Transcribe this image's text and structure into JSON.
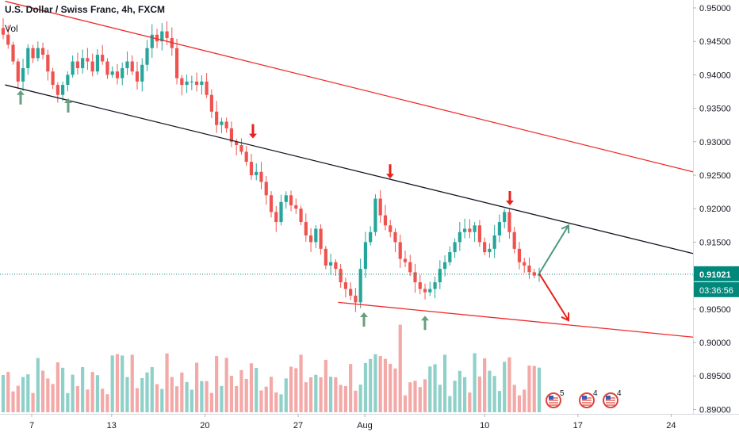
{
  "title": "U.S. Dollar / Swiss Franc, 4h, FXCM",
  "volume_label": "Vol",
  "price_label": "0.91021",
  "countdown_label": "03:36:56",
  "colors": {
    "up": "#26a69a",
    "down": "#ef5350",
    "up_volume": "#8fd0c9",
    "down_volume": "#f3a9a7",
    "price_line": "#00897b",
    "resistance_line": "#ef2b2b",
    "trend_line": "#131722",
    "up_arrow": "#6a9e80",
    "down_arrow": "#e8211d",
    "scenario_up": "#4f9a80",
    "scenario_down": "#e8211d"
  },
  "events": [
    {
      "icon": "us-flag-event-icon",
      "count": "5"
    },
    {
      "icon": "us-flag-event-icon",
      "count": "4"
    },
    {
      "icon": "us-flag-event-icon",
      "count": "4"
    }
  ],
  "chart_data": {
    "type": "candlestick",
    "symbol": "USDCHF",
    "interval": "4h",
    "y_axis": {
      "range": [
        0.8895,
        0.95
      ],
      "ticks": [
        "0.95000",
        "0.94500",
        "0.94000",
        "0.93500",
        "0.93000",
        "0.92500",
        "0.92000",
        "0.91500",
        "0.91000",
        "0.90500",
        "0.90000",
        "0.89500",
        "0.89000"
      ]
    },
    "x_axis": {
      "ticks": [
        "7",
        "13",
        "20",
        "27",
        "Aug",
        "10",
        "17",
        "24"
      ]
    },
    "last_price": 0.91021,
    "trend_lines": [
      {
        "name": "upper-channel",
        "from": [
          "Jul 5",
          0.951
        ],
        "to": [
          "Aug 28",
          0.9255
        ]
      },
      {
        "name": "middle-trend",
        "from": [
          "Jul 5",
          0.9385
        ],
        "to": [
          "Aug 28",
          0.9133
        ]
      },
      {
        "name": "lower-channel",
        "from": [
          "Jul 30",
          0.906
        ],
        "to": [
          "Aug 28",
          0.9008
        ]
      }
    ],
    "markers": [
      {
        "type": "up-arrow",
        "date": "Jul 6",
        "price": 0.9377
      },
      {
        "type": "up-arrow",
        "date": "Jul 9",
        "price": 0.9365
      },
      {
        "type": "down-arrow",
        "date": "Jul 24",
        "price": 0.9305
      },
      {
        "type": "down-arrow",
        "date": "Aug 1",
        "price": 0.9245
      },
      {
        "type": "down-arrow",
        "date": "Aug 13",
        "price": 0.9205
      },
      {
        "type": "up-arrow",
        "date": "Jul 31",
        "price": 0.9045
      },
      {
        "type": "up-arrow",
        "date": "Aug 5",
        "price": 0.904
      }
    ],
    "scenarios": [
      {
        "direction": "up",
        "from": [
          "Aug 14",
          0.9103
        ],
        "to": [
          "Aug 16",
          0.9175
        ]
      },
      {
        "direction": "down",
        "from": [
          "Aug 14",
          0.9103
        ],
        "to": [
          "Aug 16",
          0.9033
        ]
      }
    ],
    "close_path": [
      0.946,
      0.9445,
      0.942,
      0.939,
      0.941,
      0.944,
      0.9425,
      0.944,
      0.943,
      0.9405,
      0.9385,
      0.937,
      0.9385,
      0.94,
      0.942,
      0.941,
      0.9425,
      0.942,
      0.9405,
      0.943,
      0.942,
      0.94,
      0.9405,
      0.9395,
      0.941,
      0.942,
      0.9405,
      0.939,
      0.9415,
      0.944,
      0.946,
      0.945,
      0.9465,
      0.9455,
      0.944,
      0.9395,
      0.9385,
      0.939,
      0.939,
      0.9385,
      0.939,
      0.937,
      0.9345,
      0.9325,
      0.933,
      0.932,
      0.93,
      0.9295,
      0.9285,
      0.927,
      0.925,
      0.9255,
      0.924,
      0.922,
      0.9195,
      0.918,
      0.921,
      0.922,
      0.9205,
      0.92,
      0.918,
      0.916,
      0.915,
      0.917,
      0.914,
      0.9115,
      0.912,
      0.911,
      0.909,
      0.908,
      0.907,
      0.906,
      0.911,
      0.915,
      0.9165,
      0.9215,
      0.919,
      0.9175,
      0.9165,
      0.915,
      0.9125,
      0.912,
      0.9105,
      0.909,
      0.908,
      0.9075,
      0.908,
      0.909,
      0.911,
      0.912,
      0.9135,
      0.915,
      0.9165,
      0.917,
      0.9165,
      0.9175,
      0.915,
      0.9135,
      0.914,
      0.916,
      0.918,
      0.9195,
      0.9165,
      0.914,
      0.912,
      0.9115,
      0.9105,
      0.91,
      0.9102
    ],
    "volume_scale": [
      0,
      1
    ]
  }
}
